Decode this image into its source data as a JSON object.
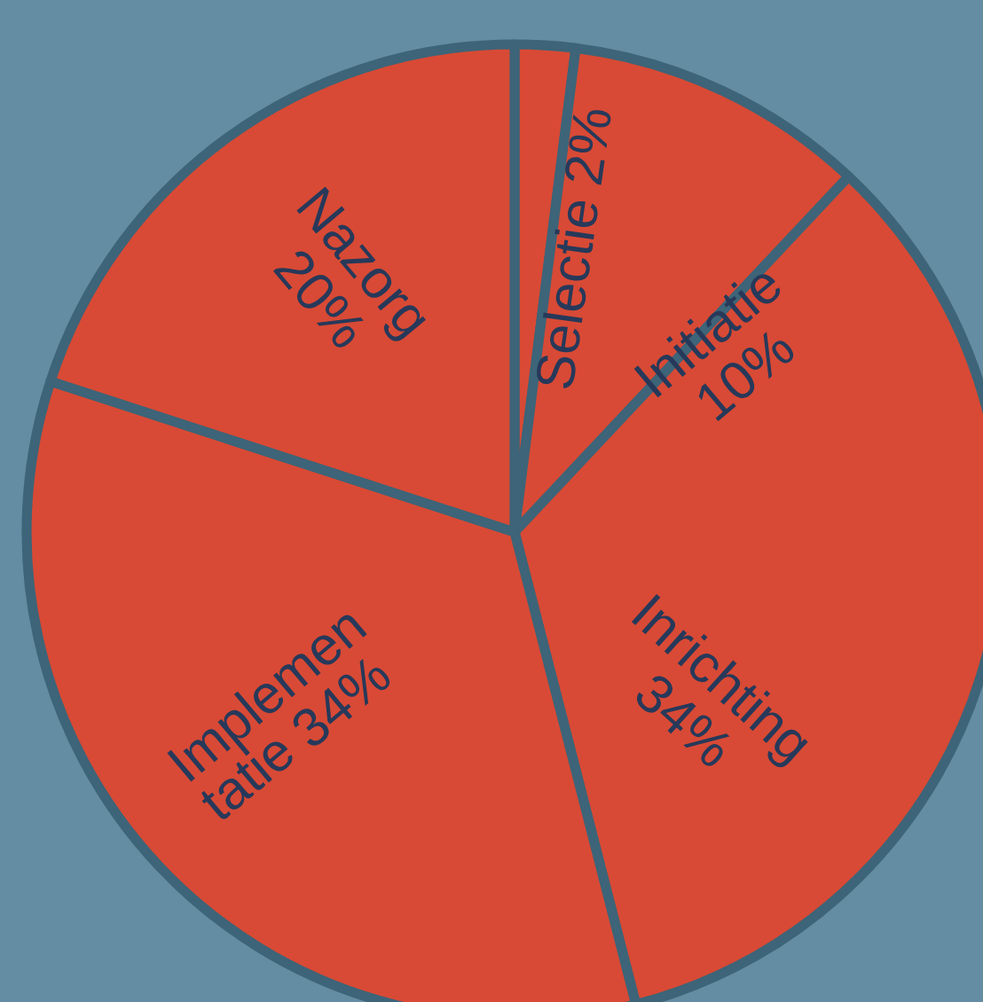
{
  "chart_data": {
    "type": "pie",
    "categories": [
      "Selectie",
      "Initiatie",
      "Inrichting",
      "Implemen\ntatie",
      "Nazorg"
    ],
    "values": [
      2,
      10,
      34,
      34,
      20
    ],
    "value_labels": [
      "2%",
      "10%",
      "34%",
      "34%",
      "20%"
    ],
    "colors": [
      "#d84a35",
      "#d84a35",
      "#d84a35",
      "#d84a35",
      "#d84a35"
    ]
  }
}
